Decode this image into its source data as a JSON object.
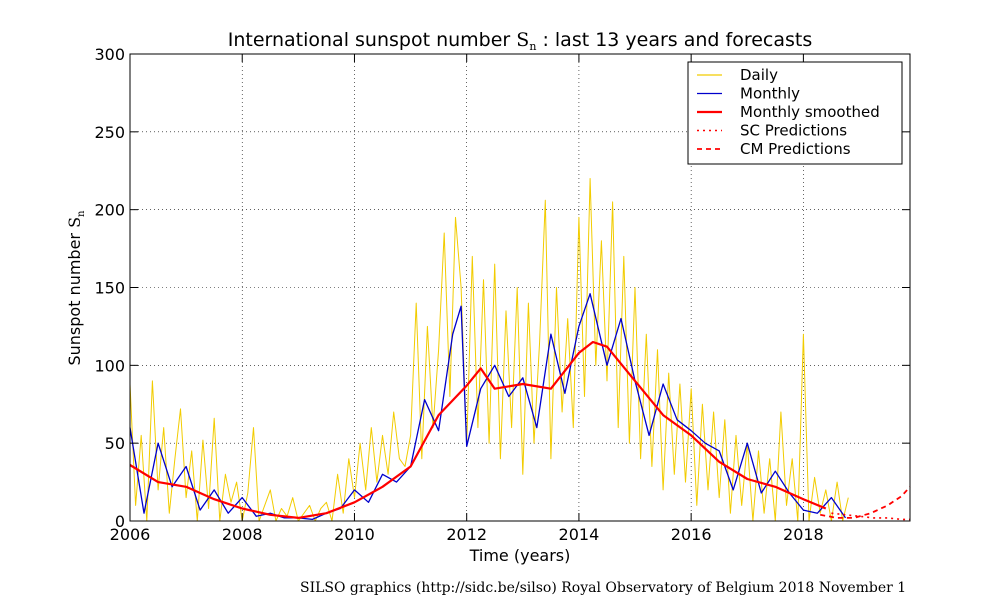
{
  "chart_data": {
    "type": "line",
    "title": "International sunspot number",
    "title_symbol": "S",
    "title_symbol_sub": "n",
    "title_suffix": ": last 13 years and forecasts",
    "xlabel": "Time (years)",
    "ylabel": "Sunspot number",
    "ylabel_symbol": "S",
    "ylabel_symbol_sub": "n",
    "xlim": [
      2006.0,
      2019.9
    ],
    "ylim": [
      0,
      300
    ],
    "x_ticks": [
      2006,
      2008,
      2010,
      2012,
      2014,
      2016,
      2018
    ],
    "y_ticks": [
      0,
      50,
      100,
      150,
      200,
      250,
      300
    ],
    "grid": true,
    "legend_position": "top-right",
    "series": [
      {
        "name": "Daily",
        "style": "thin-line",
        "color": "#f2cc00",
        "x": [
          2006.0,
          2006.1,
          2006.2,
          2006.3,
          2006.4,
          2006.5,
          2006.6,
          2006.7,
          2006.8,
          2006.9,
          2007.0,
          2007.1,
          2007.2,
          2007.3,
          2007.4,
          2007.5,
          2007.6,
          2007.7,
          2007.8,
          2007.9,
          2008.0,
          2008.1,
          2008.2,
          2008.3,
          2008.4,
          2008.5,
          2008.6,
          2008.7,
          2008.8,
          2008.9,
          2009.0,
          2009.1,
          2009.2,
          2009.3,
          2009.4,
          2009.5,
          2009.6,
          2009.7,
          2009.8,
          2009.9,
          2010.0,
          2010.1,
          2010.2,
          2010.3,
          2010.4,
          2010.5,
          2010.6,
          2010.7,
          2010.8,
          2010.9,
          2011.0,
          2011.1,
          2011.2,
          2011.3,
          2011.4,
          2011.5,
          2011.6,
          2011.7,
          2011.8,
          2011.9,
          2012.0,
          2012.1,
          2012.2,
          2012.3,
          2012.4,
          2012.5,
          2012.6,
          2012.7,
          2012.8,
          2012.9,
          2013.0,
          2013.1,
          2013.2,
          2013.3,
          2013.4,
          2013.5,
          2013.6,
          2013.7,
          2013.8,
          2013.9,
          2014.0,
          2014.1,
          2014.2,
          2014.3,
          2014.4,
          2014.5,
          2014.6,
          2014.7,
          2014.8,
          2014.9,
          2015.0,
          2015.1,
          2015.2,
          2015.3,
          2015.4,
          2015.5,
          2015.6,
          2015.7,
          2015.8,
          2015.9,
          2016.0,
          2016.1,
          2016.2,
          2016.3,
          2016.4,
          2016.5,
          2016.6,
          2016.7,
          2016.8,
          2016.9,
          2017.0,
          2017.1,
          2017.2,
          2017.3,
          2017.4,
          2017.5,
          2017.6,
          2017.7,
          2017.8,
          2017.9,
          2018.0,
          2018.1,
          2018.2,
          2018.3,
          2018.4,
          2018.5,
          2018.6,
          2018.7,
          2018.8
        ],
        "y": [
          88,
          10,
          55,
          0,
          90,
          20,
          60,
          5,
          40,
          72,
          15,
          45,
          0,
          52,
          8,
          66,
          0,
          30,
          12,
          25,
          0,
          18,
          60,
          0,
          10,
          20,
          0,
          8,
          3,
          15,
          0,
          5,
          10,
          0,
          8,
          12,
          0,
          30,
          5,
          40,
          15,
          50,
          20,
          60,
          25,
          55,
          30,
          70,
          40,
          35,
          55,
          140,
          40,
          125,
          60,
          110,
          185,
          80,
          195,
          150,
          48,
          170,
          60,
          155,
          50,
          165,
          40,
          135,
          60,
          150,
          30,
          140,
          50,
          115,
          206,
          40,
          150,
          70,
          130,
          60,
          195,
          80,
          220,
          100,
          180,
          90,
          205,
          60,
          170,
          50,
          150,
          40,
          120,
          35,
          110,
          20,
          95,
          30,
          88,
          25,
          85,
          10,
          75,
          20,
          70,
          15,
          65,
          5,
          55,
          10,
          50,
          0,
          45,
          5,
          40,
          0,
          70,
          10,
          40,
          0,
          120,
          0,
          28,
          5,
          20,
          0,
          25,
          0,
          15
        ]
      },
      {
        "name": "Monthly",
        "style": "line",
        "color": "#0000cc",
        "x": [
          2006.0,
          2006.25,
          2006.5,
          2006.75,
          2007.0,
          2007.25,
          2007.5,
          2007.75,
          2008.0,
          2008.25,
          2008.5,
          2008.75,
          2009.0,
          2009.25,
          2009.5,
          2009.75,
          2010.0,
          2010.25,
          2010.5,
          2010.75,
          2011.0,
          2011.25,
          2011.5,
          2011.75,
          2011.9,
          2012.0,
          2012.25,
          2012.5,
          2012.75,
          2013.0,
          2013.25,
          2013.5,
          2013.75,
          2014.0,
          2014.2,
          2014.5,
          2014.75,
          2015.0,
          2015.25,
          2015.5,
          2015.75,
          2016.0,
          2016.25,
          2016.5,
          2016.75,
          2017.0,
          2017.25,
          2017.5,
          2017.75,
          2018.0,
          2018.25,
          2018.5,
          2018.75
        ],
        "y": [
          60,
          5,
          50,
          22,
          35,
          7,
          20,
          5,
          15,
          3,
          5,
          2,
          2,
          1,
          5,
          8,
          20,
          12,
          30,
          25,
          35,
          78,
          58,
          120,
          138,
          48,
          85,
          100,
          80,
          92,
          60,
          120,
          82,
          125,
          146,
          100,
          130,
          90,
          55,
          88,
          65,
          58,
          50,
          45,
          20,
          50,
          18,
          32,
          18,
          7,
          5,
          15,
          2
        ]
      },
      {
        "name": "Monthly smoothed",
        "style": "thick-line",
        "color": "#ff0000",
        "x": [
          2006.0,
          2006.5,
          2007.0,
          2007.5,
          2008.0,
          2008.5,
          2009.0,
          2009.5,
          2010.0,
          2010.5,
          2011.0,
          2011.5,
          2012.0,
          2012.25,
          2012.5,
          2013.0,
          2013.5,
          2014.0,
          2014.25,
          2014.5,
          2015.0,
          2015.5,
          2016.0,
          2016.5,
          2017.0,
          2017.5,
          2018.0,
          2018.4
        ],
        "y": [
          36,
          25,
          22,
          14,
          8,
          4,
          2,
          5,
          12,
          22,
          35,
          68,
          87,
          98,
          85,
          88,
          85,
          108,
          115,
          112,
          90,
          68,
          55,
          38,
          27,
          22,
          14,
          8
        ]
      },
      {
        "name": "SC Predictions",
        "style": "dash-dot",
        "color": "#ff0000",
        "x": [
          2018.5,
          2018.75,
          2019.0,
          2019.25,
          2019.5,
          2019.75,
          2019.9
        ],
        "y": [
          5,
          4,
          3,
          2,
          2,
          1,
          1
        ]
      },
      {
        "name": "CM Predictions",
        "style": "dashed",
        "color": "#ff0000",
        "x": [
          2018.3,
          2018.6,
          2018.9,
          2019.2,
          2019.5,
          2019.75,
          2019.9
        ],
        "y": [
          4,
          2,
          2,
          5,
          10,
          16,
          22
        ]
      }
    ]
  },
  "credit": "SILSO graphics (http://sidc.be/silso)  Royal Observatory of Belgium  2018 November 1"
}
